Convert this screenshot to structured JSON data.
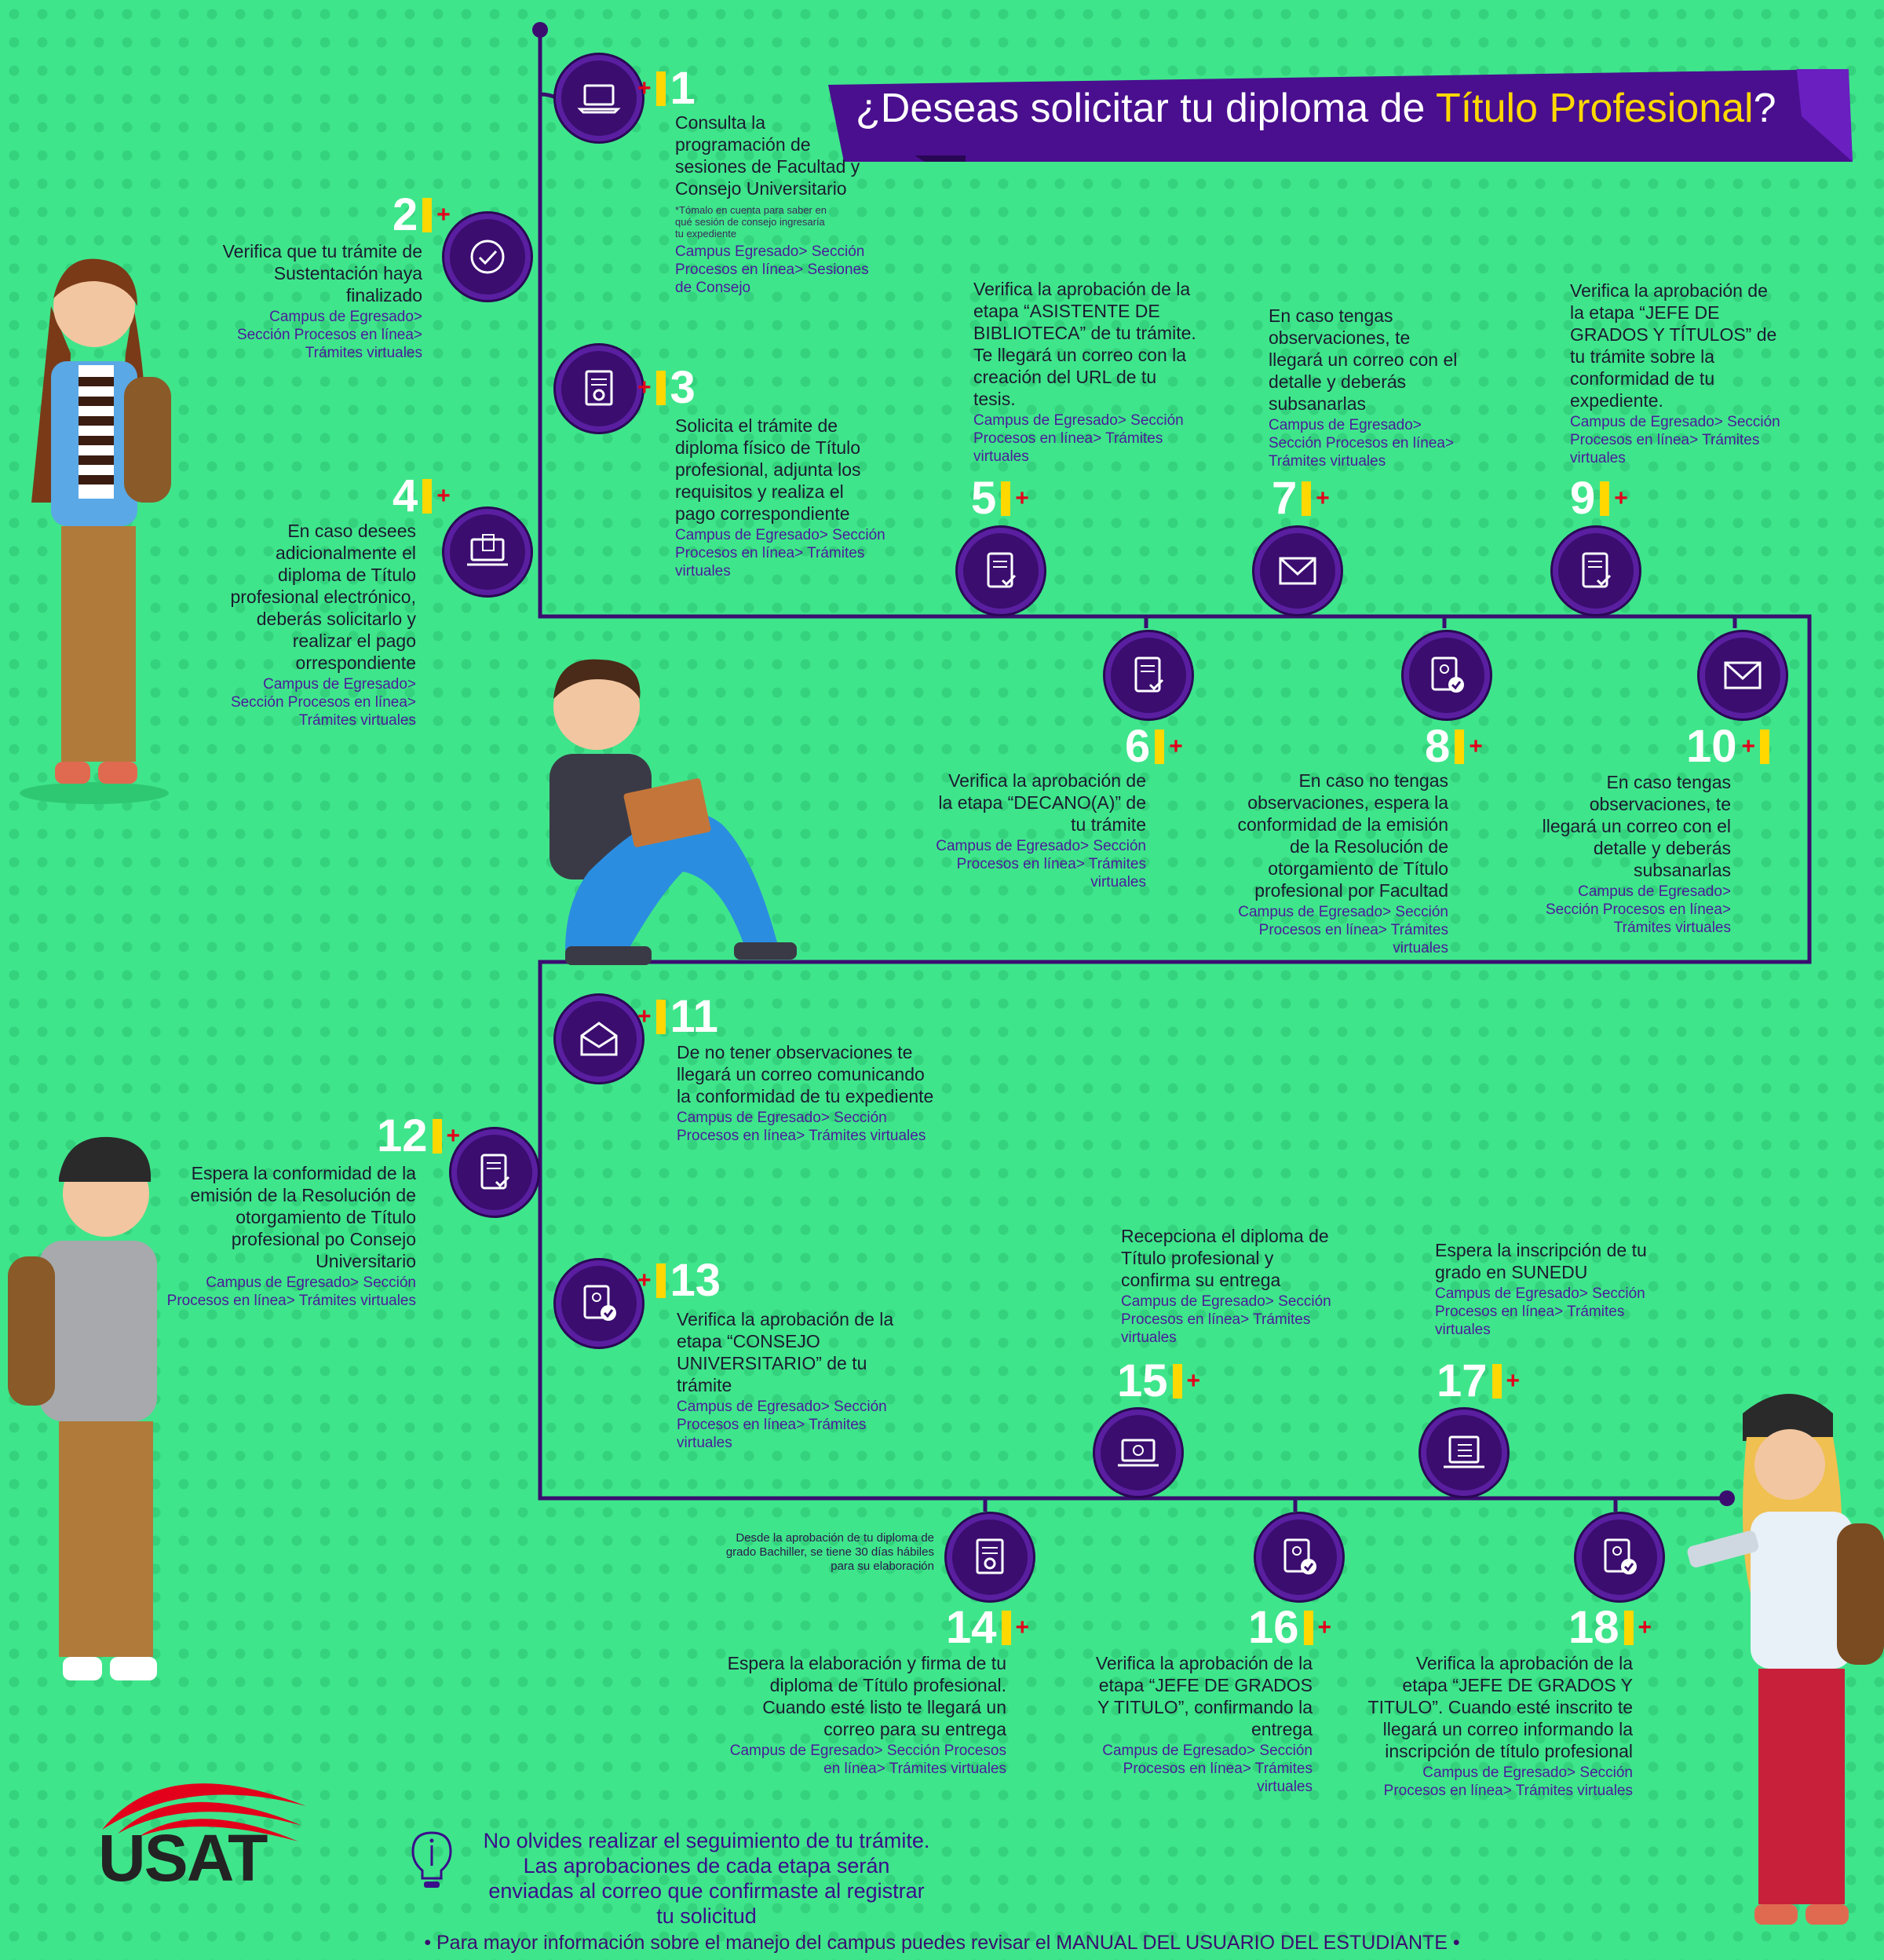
{
  "title": {
    "prefix": "¿Deseas solicitar tu diploma de ",
    "highlight": "Título Profesional",
    "suffix": "?"
  },
  "steps": [
    {
      "n": "1",
      "desc": "Consulta la programación de sesiones de Facultad y Consejo Universitario",
      "note": "*Tómalo en cuenta para saber en qué sesión de consejo ingresaría tu expediente",
      "links": "Campus Egresado> Sección Procesos en línea> Sesiones de Consejo"
    },
    {
      "n": "2",
      "desc": "Verifica que tu trámite de Sustentación haya finalizado",
      "links": "Campus de Egresado> Sección Procesos en línea> Trámites virtuales"
    },
    {
      "n": "3",
      "desc": "Solicita el trámite de diploma físico de Título profesional, adjunta los requisitos y realiza el pago correspondiente",
      "links": "Campus de Egresado> Sección Procesos en línea> Trámites virtuales"
    },
    {
      "n": "4",
      "desc": "En caso desees adicionalmente el diploma de Título profesional electrónico, deberás solicitarlo y realizar el pago orrespondiente",
      "links": "Campus de Egresado> Sección Procesos en línea> Trámites virtuales"
    },
    {
      "n": "5",
      "desc": "Verifica la aprobación de la etapa “ASISTENTE DE BIBLIOTECA” de tu trámite. Te llegará un correo con la creación del URL de tu tesis.",
      "links": "Campus de Egresado> Sección Procesos en línea> Trámites virtuales"
    },
    {
      "n": "6",
      "desc": "Verifica la aprobación de la etapa “DECANO(A)” de tu trámite",
      "links": "Campus de Egresado> Sección Procesos en línea> Trámites virtuales"
    },
    {
      "n": "7",
      "desc": "En caso tengas observaciones, te llegará un correo con el detalle y deberás subsanarlas",
      "links": "Campus de Egresado> Sección Procesos en línea> Trámites virtuales"
    },
    {
      "n": "8",
      "desc": "En caso no tengas observaciones, espera la conformidad de la emisión de la Resolución de otorgamiento de Título profesional por Facultad",
      "links": "Campus de Egresado> Sección Procesos en línea> Trámites virtuales"
    },
    {
      "n": "9",
      "desc": "Verifica la aprobación de la etapa “JEFE DE GRADOS Y TÍTULOS” de tu trámite sobre la conformidad de tu expediente.",
      "links": "Campus de Egresado> Sección Procesos en línea> Trámites virtuales"
    },
    {
      "n": "10",
      "desc": "En caso tengas observaciones, te llegará un correo con el detalle y deberás subsanarlas",
      "links": "Campus de Egresado> Sección Procesos en línea> Trámites virtuales"
    },
    {
      "n": "11",
      "desc": "De no tener observaciones te llegará un correo comunicando la conformidad de tu expediente",
      "links": "Campus de Egresado> Sección Procesos en línea> Trámites virtuales"
    },
    {
      "n": "12",
      "desc": "Espera la conformidad de la emisión de la Resolución de otorgamiento de Título profesional po Consejo Universitario",
      "links": "Campus de Egresado> Sección Procesos en línea> Trámites virtuales"
    },
    {
      "n": "13",
      "desc": "Verifica la aprobación de la etapa “CONSEJO UNIVERSITARIO” de tu trámite",
      "links": "Campus de Egresado> Sección Procesos en línea> Trámites virtuales"
    },
    {
      "n": "14",
      "desc": "Espera la elaboración y firma de tu diploma de Título profesional. Cuando esté listo te llegará un correo para su entrega",
      "links": "Campus de Egresado> Sección Procesos en línea> Trámites virtuales"
    },
    {
      "n": "15",
      "desc": "Recepciona el diploma de Título profesional y confirma su entrega",
      "links": "Campus de Egresado> Sección Procesos en línea> Trámites virtuales"
    },
    {
      "n": "16",
      "desc": "Verifica la aprobación de la etapa “JEFE DE GRADOS Y TITULO”, confirmando la entrega",
      "links": "Campus de Egresado> Sección Procesos en línea> Trámites virtuales"
    },
    {
      "n": "17",
      "desc": "Espera la inscripción de tu grado en SUNEDU",
      "links": "Campus de Egresado> Sección Procesos en línea> Trámites virtuales"
    },
    {
      "n": "18",
      "desc": "Verifica la aprobación de la etapa “JEFE DE GRADOS Y TITULO”. Cuando esté inscrito te llegará un correo informando la inscripción de título profesional",
      "links": "Campus de Egresado> Sección Procesos en línea> Trámites virtuales"
    }
  ],
  "note14": "Desde la aprobación de tu diploma de grado Bachiller, se tiene 30 días hábiles para su elaboración",
  "tip": "No olvides realizar el seguimiento de tu trámite. Las aprobaciones de cada etapa serán enviadas al correo que confirmaste al registrar tu solicitud",
  "footer": "• Para mayor información sobre el manejo del campus puedes revisar el MANUAL DEL USUARIO DEL ESTUDIANTE •",
  "logo": "USAT",
  "colors": {
    "background": "#3fe58b",
    "path": "#3a0d6f",
    "accent": "#ffd800",
    "plus": "#e3001b",
    "banner": "#4a0f8f"
  }
}
